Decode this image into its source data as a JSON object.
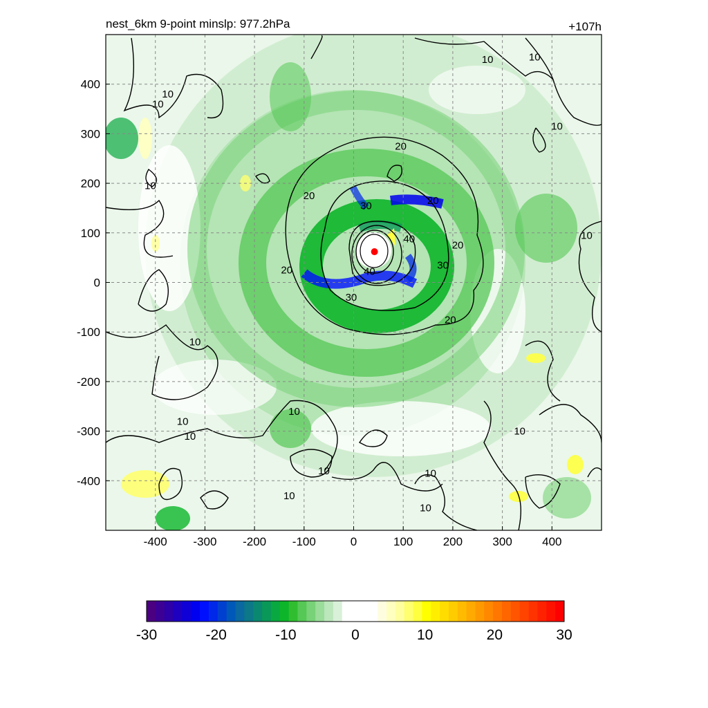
{
  "figure": {
    "title_left": "nest_6km  9-point minslp: 977.2hPa",
    "title_right": "+107h"
  },
  "chart_data": {
    "type": "heatmap",
    "xlim": [
      -500,
      500
    ],
    "ylim": [
      -500,
      500
    ],
    "x_ticks": [
      -400,
      -300,
      -200,
      -100,
      0,
      100,
      200,
      300,
      400
    ],
    "y_ticks": [
      400,
      300,
      200,
      100,
      0,
      -100,
      -200,
      -300,
      -400
    ],
    "grid": true,
    "storm_center": {
      "x": 42,
      "y": 62,
      "color": "#ff0000"
    },
    "contour_levels": [
      10,
      20,
      30,
      40
    ],
    "contour_labels": [
      {
        "text": "10",
        "x": -395,
        "y": 360
      },
      {
        "text": "10",
        "x": -375,
        "y": 380
      },
      {
        "text": "10",
        "x": -410,
        "y": 195
      },
      {
        "text": "10",
        "x": 270,
        "y": 450
      },
      {
        "text": "10",
        "x": 365,
        "y": 455
      },
      {
        "text": "10",
        "x": 410,
        "y": 315
      },
      {
        "text": "10",
        "x": 470,
        "y": 95
      },
      {
        "text": "10",
        "x": -320,
        "y": -120
      },
      {
        "text": "10",
        "x": -345,
        "y": -280
      },
      {
        "text": "10",
        "x": -330,
        "y": -310
      },
      {
        "text": "10",
        "x": -120,
        "y": -260
      },
      {
        "text": "10",
        "x": -60,
        "y": -380
      },
      {
        "text": "10",
        "x": -130,
        "y": -430
      },
      {
        "text": "10",
        "x": 155,
        "y": -385
      },
      {
        "text": "10",
        "x": 145,
        "y": -455
      },
      {
        "text": "10",
        "x": 335,
        "y": -300
      },
      {
        "text": "20",
        "x": 95,
        "y": 275
      },
      {
        "text": "20",
        "x": -90,
        "y": 175
      },
      {
        "text": "20",
        "x": 160,
        "y": 165
      },
      {
        "text": "20",
        "x": 210,
        "y": 75
      },
      {
        "text": "20",
        "x": -135,
        "y": 25
      },
      {
        "text": "20",
        "x": 195,
        "y": -75
      },
      {
        "text": "30",
        "x": 25,
        "y": 155
      },
      {
        "text": "30",
        "x": -5,
        "y": -30
      },
      {
        "text": "30",
        "x": 180,
        "y": 35
      },
      {
        "text": "40",
        "x": 112,
        "y": 88
      },
      {
        "text": "40",
        "x": 32,
        "y": 22
      }
    ],
    "colorbar": {
      "ticks": [
        -30,
        -20,
        -10,
        0,
        10,
        20,
        30
      ],
      "colors": [
        "#4b0082",
        "#3c0094",
        "#2d00a8",
        "#1e00c0",
        "#0f00d8",
        "#0000f0",
        "#0010ff",
        "#0028e8",
        "#0040d0",
        "#0058b8",
        "#0b68a0",
        "#0c7888",
        "#0b8870",
        "#0a9858",
        "#0aa840",
        "#0db52a",
        "#30be30",
        "#55c855",
        "#78d278",
        "#9adc9a",
        "#bce6bc",
        "#d9f0d9",
        "#ffffff",
        "#ffffff",
        "#ffffff",
        "#ffffff",
        "#fffde0",
        "#ffffc0",
        "#ffffa0",
        "#ffff70",
        "#ffff40",
        "#ffff00",
        "#ffee00",
        "#ffdd00",
        "#ffcc00",
        "#ffbb00",
        "#ffaa00",
        "#ff9900",
        "#ff8800",
        "#ff7700",
        "#ff6600",
        "#ff5500",
        "#ff4400",
        "#ff3300",
        "#ff2200",
        "#ff1100",
        "#ff0000"
      ]
    }
  }
}
